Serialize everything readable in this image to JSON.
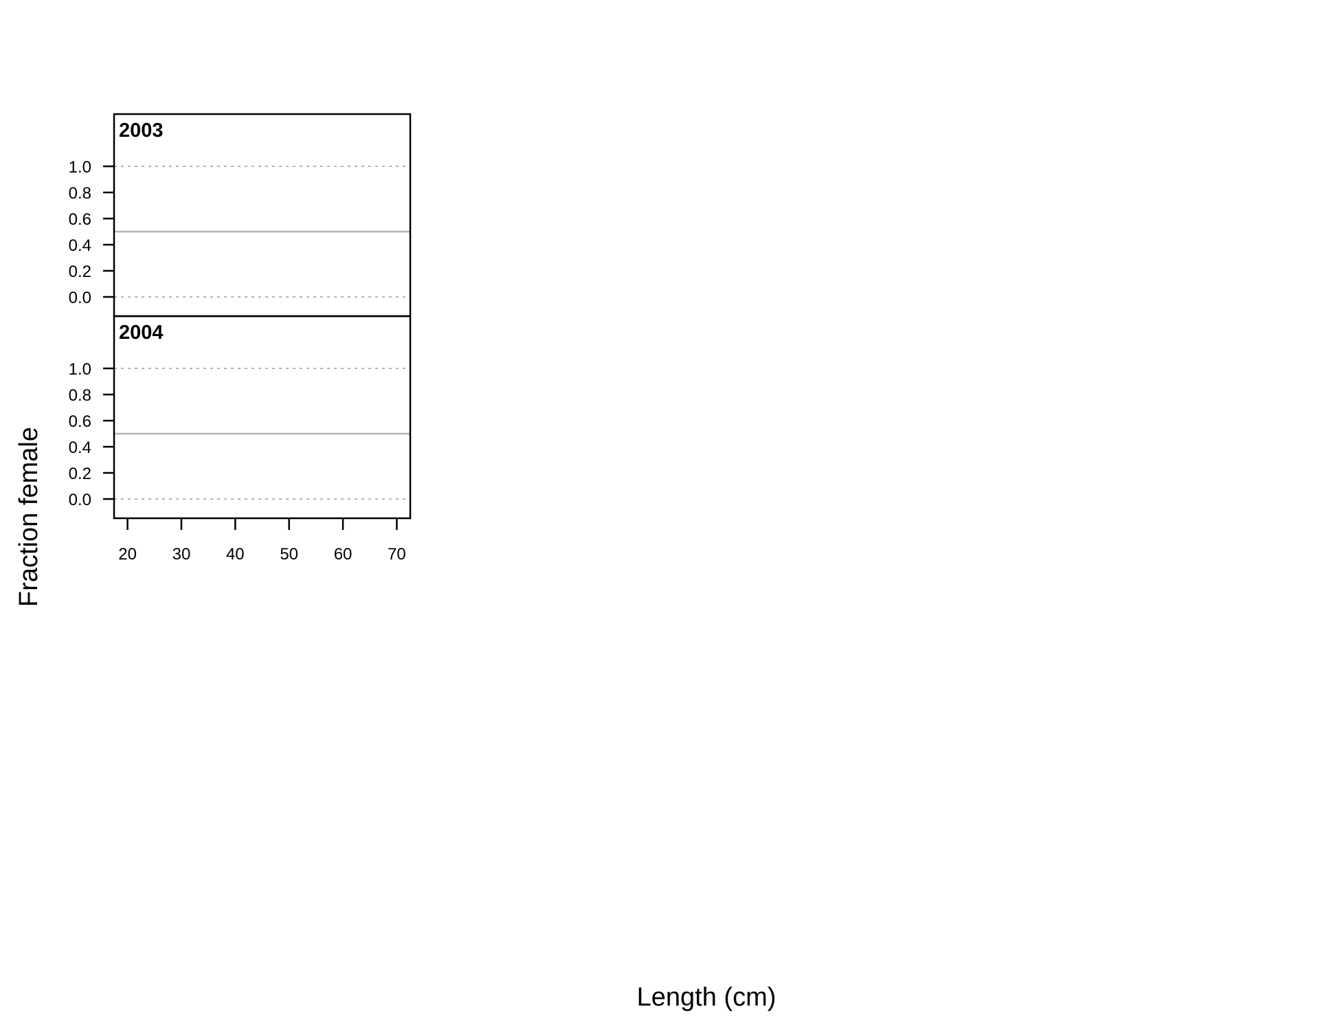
{
  "chart_data": {
    "type": "line",
    "xlabel": "Length (cm)",
    "ylabel": "Fraction female",
    "xlim": [
      17.5,
      72.5
    ],
    "ylim": [
      0,
      1
    ],
    "x_ticks": [
      20,
      30,
      40,
      50,
      60,
      70
    ],
    "y_ticks": [
      0.0,
      0.2,
      0.4,
      0.6,
      0.8,
      1.0
    ],
    "y_tick_labels": [
      "0.0",
      "0.2",
      "0.4",
      "0.6",
      "0.8",
      "1.0"
    ],
    "reference_lines": {
      "dotted": [
        0.0,
        1.0
      ],
      "solid": [
        0.5
      ]
    },
    "grid": false,
    "panels": [
      {
        "title": "2003",
        "series": []
      },
      {
        "title": "2004",
        "series": []
      }
    ]
  }
}
